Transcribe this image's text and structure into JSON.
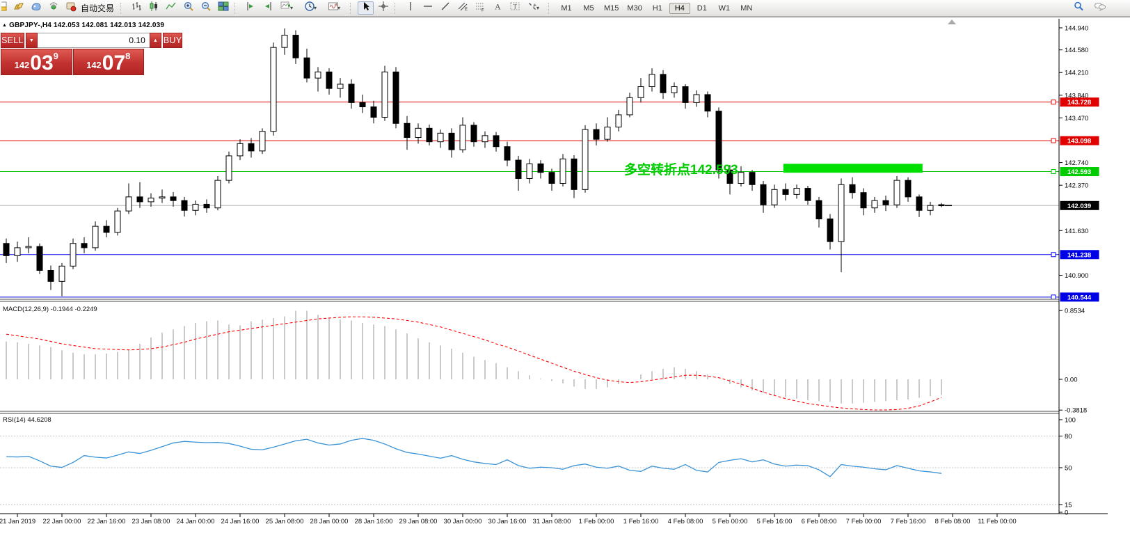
{
  "toolbar": {
    "autotrading_label": "自动交易",
    "timeframes": [
      "M1",
      "M5",
      "M15",
      "M30",
      "H1",
      "H4",
      "D1",
      "W1",
      "MN"
    ],
    "active_timeframe": "H4",
    "icons": [
      "new-order-icon",
      "gold-icon",
      "mail-icon",
      "signals-icon",
      "autotrading-icon",
      "bar-chart-icon",
      "candlestick-chart-icon",
      "line-chart-icon",
      "zoom-in-icon",
      "zoom-out-icon",
      "tile-windows-icon",
      "chart-shift-icon",
      "chart-autoscroll-icon",
      "indicators-icon",
      "periods-icon",
      "templates-icon",
      "cursor-icon",
      "crosshair-icon",
      "vertical-line-icon",
      "horizontal-line-icon",
      "trend-line-icon",
      "equidistant-channel-icon",
      "fibonacci-icon",
      "text-icon",
      "text-label-icon",
      "arrows-icon",
      "search-icon",
      "chat-icon"
    ]
  },
  "symbol_bar": {
    "marker": "▲",
    "text": "GBPJPY-,H4  142.053 142.081 142.013 142.039"
  },
  "trade_panel": {
    "sell_label": "SELL",
    "buy_label": "BUY",
    "volume": "0.10",
    "sell_prefix": "142",
    "sell_big": "03",
    "sell_sup": "9",
    "buy_prefix": "142",
    "buy_big": "07",
    "buy_sup": "8"
  },
  "indicators": {
    "macd_label": "MACD(12,26,9) -0.1944 -0.2249",
    "rsi_label": "RSI(14) 44.6208"
  },
  "annotation": {
    "text": "多空转折点142.593",
    "color": "#00cc00"
  },
  "axes": {
    "price_ticks": [
      {
        "label": "144.940",
        "v": 144.94
      },
      {
        "label": "144.580",
        "v": 144.58
      },
      {
        "label": "144.210",
        "v": 144.21
      },
      {
        "label": "143.840",
        "v": 143.84
      },
      {
        "label": "143.470",
        "v": 143.47
      },
      {
        "label": "142.740",
        "v": 142.74
      },
      {
        "label": "142.370",
        "v": 142.37
      },
      {
        "label": "141.630",
        "v": 141.63
      },
      {
        "label": "140.900",
        "v": 140.9
      }
    ],
    "price_badges": [
      {
        "label": "143.728",
        "v": 143.728,
        "color": "#e00000",
        "marker": true
      },
      {
        "label": "143.098",
        "v": 143.098,
        "color": "#e00000",
        "marker": true
      },
      {
        "label": "142.593",
        "v": 142.593,
        "color": "#00cc00",
        "marker": true
      },
      {
        "label": "142.039",
        "v": 142.039,
        "color": "#000000",
        "marker": false
      },
      {
        "label": "141.238",
        "v": 141.238,
        "color": "#0000e6",
        "marker": true
      },
      {
        "label": "140.544",
        "v": 140.544,
        "color": "#0000e6",
        "marker": true
      }
    ],
    "macd_ticks": [
      {
        "label": "0.8534",
        "v": 0.8534
      },
      {
        "label": "0.00",
        "v": 0
      },
      {
        "label": "-0.3818",
        "v": -0.3818
      }
    ],
    "rsi_ticks": [
      {
        "label": "100",
        "v": 100
      },
      {
        "label": "80",
        "v": 80
      },
      {
        "label": "50",
        "v": 50
      },
      {
        "label": "15",
        "v": 15
      },
      {
        "label": "0",
        "v": 0
      }
    ],
    "dates": [
      {
        "label": "21 Jan 2019",
        "bar": 1
      },
      {
        "label": "22 Jan 00:00",
        "bar": 5
      },
      {
        "label": "22 Jan 16:00",
        "bar": 9
      },
      {
        "label": "23 Jan 08:00",
        "bar": 13
      },
      {
        "label": "24 Jan 00:00",
        "bar": 17
      },
      {
        "label": "24 Jan 16:00",
        "bar": 21
      },
      {
        "label": "25 Jan 08:00",
        "bar": 25
      },
      {
        "label": "28 Jan 00:00",
        "bar": 29
      },
      {
        "label": "28 Jan 16:00",
        "bar": 33
      },
      {
        "label": "29 Jan 08:00",
        "bar": 37
      },
      {
        "label": "30 Jan 00:00",
        "bar": 41
      },
      {
        "label": "30 Jan 16:00",
        "bar": 45
      },
      {
        "label": "31 Jan 08:00",
        "bar": 49
      },
      {
        "label": "1 Feb 00:00",
        "bar": 53
      },
      {
        "label": "1 Feb 16:00",
        "bar": 57
      },
      {
        "label": "4 Feb 08:00",
        "bar": 61
      },
      {
        "label": "5 Feb 00:00",
        "bar": 65
      },
      {
        "label": "5 Feb 16:00",
        "bar": 69
      },
      {
        "label": "6 Feb 08:00",
        "bar": 73
      },
      {
        "label": "7 Feb 00:00",
        "bar": 77
      },
      {
        "label": "7 Feb 16:00",
        "bar": 81
      },
      {
        "label": "8 Feb 08:00",
        "bar": 85
      },
      {
        "label": "11 Feb 00:00",
        "bar": 89
      }
    ]
  },
  "chart_data": {
    "type": "candlestick",
    "title": "GBPJPY- H4",
    "current_price": 142.039,
    "price_range": [
      140.53,
      144.95
    ],
    "levels": [
      {
        "price": 143.728,
        "color": "#e00000",
        "marker": true
      },
      {
        "price": 143.098,
        "color": "#e00000",
        "marker": true
      },
      {
        "price": 142.593,
        "color": "#00c400",
        "marker": true
      },
      {
        "price": 142.039,
        "color": "#b8b8b8",
        "marker": false
      },
      {
        "price": 141.238,
        "color": "#0000e6",
        "marker": true
      },
      {
        "price": 140.544,
        "color": "#0000e6",
        "marker": true
      }
    ],
    "green_box": {
      "bar_start": 69.8,
      "bar_end": 82.3,
      "price_top": 142.72,
      "price_bottom": 142.575,
      "color": "#00e000"
    },
    "candles": [
      [
        141.42,
        141.5,
        141.1,
        141.22
      ],
      [
        141.22,
        141.45,
        141.12,
        141.35
      ],
      [
        141.35,
        141.52,
        141.26,
        141.37
      ],
      [
        141.37,
        141.42,
        140.92,
        140.98
      ],
      [
        140.98,
        141.06,
        140.66,
        140.8
      ],
      [
        140.8,
        141.1,
        140.56,
        141.05
      ],
      [
        141.05,
        141.5,
        141.0,
        141.42
      ],
      [
        141.42,
        141.52,
        141.26,
        141.35
      ],
      [
        141.35,
        141.78,
        141.3,
        141.7
      ],
      [
        141.7,
        141.8,
        141.52,
        141.6
      ],
      [
        141.6,
        142.0,
        141.55,
        141.95
      ],
      [
        141.95,
        142.4,
        141.9,
        142.18
      ],
      [
        142.18,
        142.42,
        142.0,
        142.1
      ],
      [
        142.1,
        142.24,
        142.02,
        142.16
      ],
      [
        142.16,
        142.3,
        142.08,
        142.18
      ],
      [
        142.18,
        142.26,
        142.02,
        142.12
      ],
      [
        142.12,
        142.18,
        141.86,
        141.96
      ],
      [
        141.96,
        142.12,
        141.88,
        142.06
      ],
      [
        142.06,
        142.14,
        141.92,
        142.0
      ],
      [
        142.0,
        142.52,
        141.96,
        142.45
      ],
      [
        142.45,
        142.92,
        142.4,
        142.85
      ],
      [
        142.85,
        143.12,
        142.78,
        143.05
      ],
      [
        143.05,
        143.14,
        142.82,
        142.93
      ],
      [
        142.93,
        143.3,
        142.88,
        143.25
      ],
      [
        143.25,
        144.7,
        143.18,
        144.62
      ],
      [
        144.62,
        144.93,
        144.5,
        144.82
      ],
      [
        144.82,
        144.9,
        144.35,
        144.45
      ],
      [
        144.45,
        144.6,
        144.05,
        144.12
      ],
      [
        144.12,
        144.3,
        143.9,
        144.22
      ],
      [
        144.22,
        144.28,
        143.85,
        143.95
      ],
      [
        143.95,
        144.12,
        143.8,
        144.02
      ],
      [
        144.02,
        144.1,
        143.62,
        143.72
      ],
      [
        143.72,
        143.85,
        143.55,
        143.65
      ],
      [
        143.65,
        143.75,
        143.38,
        143.48
      ],
      [
        143.48,
        144.32,
        143.42,
        144.22
      ],
      [
        144.22,
        144.3,
        143.3,
        143.38
      ],
      [
        143.38,
        143.5,
        142.95,
        143.15
      ],
      [
        143.15,
        143.38,
        143.05,
        143.3
      ],
      [
        143.3,
        143.36,
        143.02,
        143.08
      ],
      [
        143.08,
        143.28,
        142.98,
        143.22
      ],
      [
        143.22,
        143.3,
        142.82,
        142.95
      ],
      [
        142.95,
        143.48,
        142.9,
        143.35
      ],
      [
        143.35,
        143.4,
        143.0,
        143.08
      ],
      [
        143.08,
        143.25,
        142.98,
        143.18
      ],
      [
        143.18,
        143.24,
        142.92,
        143.0
      ],
      [
        143.0,
        143.08,
        142.68,
        142.78
      ],
      [
        142.78,
        142.85,
        142.28,
        142.48
      ],
      [
        142.48,
        142.8,
        142.4,
        142.72
      ],
      [
        142.72,
        142.78,
        142.48,
        142.58
      ],
      [
        142.58,
        142.64,
        142.28,
        142.4
      ],
      [
        142.4,
        142.88,
        142.35,
        142.8
      ],
      [
        142.8,
        142.86,
        142.16,
        142.3
      ],
      [
        142.3,
        143.35,
        142.25,
        143.28
      ],
      [
        143.28,
        143.38,
        143.02,
        143.12
      ],
      [
        143.12,
        143.48,
        143.08,
        143.32
      ],
      [
        143.32,
        143.6,
        143.25,
        143.52
      ],
      [
        143.52,
        143.88,
        143.48,
        143.8
      ],
      [
        143.8,
        144.12,
        143.72,
        143.98
      ],
      [
        143.98,
        144.28,
        143.9,
        144.18
      ],
      [
        144.18,
        144.25,
        143.78,
        143.88
      ],
      [
        143.88,
        144.05,
        143.8,
        143.98
      ],
      [
        143.98,
        144.02,
        143.62,
        143.72
      ],
      [
        143.72,
        143.92,
        143.65,
        143.85
      ],
      [
        143.85,
        143.9,
        143.48,
        143.58
      ],
      [
        143.58,
        143.64,
        142.48,
        142.62
      ],
      [
        142.62,
        142.7,
        142.22,
        142.4
      ],
      [
        142.4,
        142.68,
        142.35,
        142.58
      ],
      [
        142.58,
        142.62,
        142.28,
        142.38
      ],
      [
        142.38,
        142.44,
        141.92,
        142.05
      ],
      [
        142.05,
        142.38,
        142.0,
        142.3
      ],
      [
        142.3,
        142.4,
        142.12,
        142.22
      ],
      [
        142.22,
        142.38,
        142.15,
        142.32
      ],
      [
        142.32,
        142.36,
        142.05,
        142.12
      ],
      [
        142.12,
        142.18,
        141.68,
        141.82
      ],
      [
        141.82,
        141.9,
        141.32,
        141.45
      ],
      [
        141.45,
        142.48,
        140.95,
        142.38
      ],
      [
        142.38,
        142.5,
        142.15,
        142.25
      ],
      [
        142.25,
        142.32,
        141.88,
        142.0
      ],
      [
        142.0,
        142.18,
        141.92,
        142.12
      ],
      [
        142.12,
        142.2,
        141.95,
        142.05
      ],
      [
        142.05,
        142.52,
        142.0,
        142.45
      ],
      [
        142.45,
        142.5,
        142.1,
        142.18
      ],
      [
        142.18,
        142.22,
        141.85,
        141.96
      ],
      [
        141.96,
        142.1,
        141.88,
        142.04
      ],
      [
        142.053,
        142.081,
        142.013,
        142.039
      ]
    ],
    "macd": {
      "hist": [
        0.47,
        0.46,
        0.44,
        0.42,
        0.4,
        0.36,
        0.33,
        0.31,
        0.31,
        0.32,
        0.34,
        0.37,
        0.44,
        0.52,
        0.58,
        0.62,
        0.66,
        0.7,
        0.72,
        0.73,
        0.68,
        0.67,
        0.72,
        0.74,
        0.76,
        0.78,
        0.85,
        0.85,
        0.8,
        0.77,
        0.74,
        0.73,
        0.7,
        0.68,
        0.66,
        0.62,
        0.57,
        0.51,
        0.46,
        0.42,
        0.38,
        0.33,
        0.28,
        0.24,
        0.2,
        0.15,
        0.1,
        0.05,
        0.01,
        -0.02,
        -0.05,
        -0.09,
        -0.12,
        -0.12,
        -0.1,
        -0.06,
        0,
        0.06,
        0.1,
        0.13,
        0.15,
        0.13,
        0.1,
        0.06,
        0,
        -0.06,
        -0.1,
        -0.14,
        -0.17,
        -0.2,
        -0.22,
        -0.24,
        -0.26,
        -0.27,
        -0.28,
        -0.3,
        -0.3,
        -0.29,
        -0.28,
        -0.27,
        -0.26,
        -0.25,
        -0.23,
        -0.21,
        -0.1944
      ],
      "signal": [
        0.56,
        0.54,
        0.52,
        0.5,
        0.47,
        0.44,
        0.42,
        0.4,
        0.38,
        0.375,
        0.37,
        0.365,
        0.37,
        0.38,
        0.4,
        0.43,
        0.46,
        0.5,
        0.53,
        0.56,
        0.59,
        0.61,
        0.63,
        0.65,
        0.67,
        0.69,
        0.71,
        0.73,
        0.75,
        0.76,
        0.77,
        0.775,
        0.775,
        0.77,
        0.76,
        0.75,
        0.73,
        0.71,
        0.68,
        0.65,
        0.61,
        0.57,
        0.53,
        0.49,
        0.44,
        0.4,
        0.35,
        0.3,
        0.25,
        0.2,
        0.15,
        0.1,
        0.06,
        0.02,
        -0.01,
        -0.03,
        -0.04,
        -0.03,
        -0.01,
        0.01,
        0.03,
        0.05,
        0.05,
        0.04,
        0.02,
        -0.02,
        -0.06,
        -0.11,
        -0.16,
        -0.2,
        -0.24,
        -0.27,
        -0.3,
        -0.32,
        -0.34,
        -0.355,
        -0.365,
        -0.375,
        -0.38,
        -0.38,
        -0.375,
        -0.36,
        -0.33,
        -0.28,
        -0.2249
      ],
      "range": [
        -0.3818,
        0.8534
      ]
    },
    "rsi": {
      "values": [
        60.5,
        60.2,
        60.8,
        56.5,
        51.5,
        50.3,
        55,
        61.5,
        60,
        59.2,
        62,
        65,
        63.5,
        66.5,
        70,
        73.5,
        75,
        74.3,
        73.8,
        74,
        73,
        70.5,
        67.5,
        67,
        69.5,
        72.5,
        75.5,
        77,
        73.5,
        71.5,
        72.5,
        76,
        77.8,
        76,
        72.5,
        68,
        64.5,
        63,
        61,
        59,
        61.5,
        58,
        55.5,
        54,
        53,
        57.5,
        52,
        49.5,
        50.5,
        50,
        48.5,
        52,
        53.5,
        50.5,
        49.5,
        51.5,
        47.5,
        46.5,
        51.5,
        49.5,
        48.5,
        53,
        47.5,
        46,
        55,
        57,
        58.5,
        55.5,
        57.5,
        53.5,
        51.5,
        52.5,
        52,
        48,
        41.5,
        53,
        51.5,
        50.5,
        49,
        48,
        52,
        49.5,
        47,
        46,
        44.6
      ],
      "levels": [
        80,
        50,
        15
      ],
      "range": [
        0,
        100
      ]
    }
  }
}
